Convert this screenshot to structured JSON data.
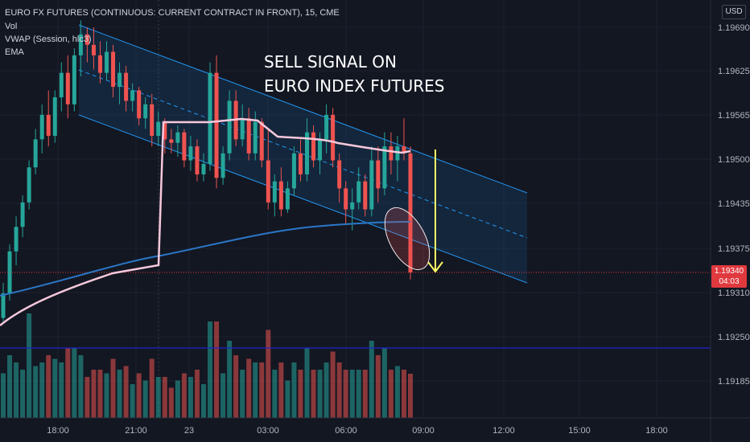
{
  "header": {
    "title": "EURO FX FUTURES (CONTINUOUS: CURRENT CONTRACT IN FRONT), 15, CME",
    "indicators": [
      "Vol",
      "VWAP (Session, hlc3)",
      "EMA"
    ]
  },
  "currency_label": "USD",
  "last_price": "1.19340",
  "countdown": "04:03",
  "annotation": [
    "SELL SIGNAL ON",
    "EURO INDEX FUTURES"
  ],
  "colors": {
    "bull": "#26a69a",
    "bear": "#ef5350",
    "vwap": "#f8c8dc",
    "ema": "#2962ff",
    "channel": "#2196f3",
    "arrow": "#ffff66",
    "hline": "#1e22c8",
    "badge": "#e0393e"
  },
  "chart_data": {
    "type": "candlestick",
    "title": "EURO FX FUTURES (CONTINUOUS: CURRENT CONTRACT IN FRONT), 15, CME",
    "y_ticks": [
      "1.19690",
      "1.19625",
      "1.19565",
      "1.19500",
      "1.19435",
      "1.19375",
      "1.19310",
      "1.19250",
      "1.19185"
    ],
    "x_ticks": [
      "18:00",
      "21:00",
      "23",
      "03:00",
      "06:00",
      "09:00",
      "12:00",
      "15:00",
      "18:00"
    ],
    "ylim": [
      1.1914,
      1.1971
    ],
    "horizontal_lines": [
      1.1934,
      1.1924
    ],
    "candles_approx_ohlc": [
      [
        1.19275,
        1.19325,
        1.1927,
        1.1931
      ],
      [
        1.1931,
        1.1938,
        1.193,
        1.1937
      ],
      [
        1.1937,
        1.1942,
        1.1935,
        1.19405
      ],
      [
        1.19405,
        1.1945,
        1.1939,
        1.1944
      ],
      [
        1.1944,
        1.195,
        1.1943,
        1.1949
      ],
      [
        1.1949,
        1.19545,
        1.1948,
        1.1953
      ],
      [
        1.1953,
        1.1958,
        1.1951,
        1.19565
      ],
      [
        1.19565,
        1.196,
        1.1952,
        1.19535
      ],
      [
        1.19535,
        1.196,
        1.19525,
        1.1959
      ],
      [
        1.1959,
        1.1964,
        1.1957,
        1.19625
      ],
      [
        1.19625,
        1.1965,
        1.1956,
        1.1958
      ],
      [
        1.1958,
        1.1966,
        1.1957,
        1.1965
      ],
      [
        1.1965,
        1.197,
        1.1962,
        1.1968
      ],
      [
        1.1968,
        1.1969,
        1.1964,
        1.19665
      ],
      [
        1.19665,
        1.1969,
        1.1963,
        1.1965
      ],
      [
        1.1965,
        1.1967,
        1.1961,
        1.19625
      ],
      [
        1.19625,
        1.1967,
        1.19615,
        1.19655
      ],
      [
        1.19655,
        1.19665,
        1.1959,
        1.19605
      ],
      [
        1.19605,
        1.1964,
        1.1958,
        1.19625
      ],
      [
        1.19625,
        1.19635,
        1.1957,
        1.19585
      ],
      [
        1.19585,
        1.1961,
        1.1957,
        1.196
      ],
      [
        1.196,
        1.19605,
        1.1955,
        1.1956
      ],
      [
        1.1956,
        1.1959,
        1.19545,
        1.1958
      ],
      [
        1.1958,
        1.19595,
        1.1952,
        1.19535
      ],
      [
        1.19535,
        1.1957,
        1.1952,
        1.19555
      ],
      [
        1.19555,
        1.1956,
        1.1951,
        1.1953
      ],
      [
        1.1953,
        1.19545,
        1.1951,
        1.19525
      ],
      [
        1.19525,
        1.1955,
        1.19505,
        1.1954
      ],
      [
        1.1954,
        1.19545,
        1.1949,
        1.195
      ],
      [
        1.195,
        1.19535,
        1.19485,
        1.1952
      ],
      [
        1.1952,
        1.1953,
        1.1947,
        1.1948
      ],
      [
        1.1948,
        1.1951,
        1.1947,
        1.19495
      ],
      [
        1.19495,
        1.1964,
        1.19485,
        1.19625
      ],
      [
        1.19625,
        1.1965,
        1.1946,
        1.19475
      ],
      [
        1.19475,
        1.1952,
        1.19465,
        1.1951
      ],
      [
        1.1951,
        1.196,
        1.195,
        1.19585
      ],
      [
        1.19585,
        1.196,
        1.1952,
        1.1953
      ],
      [
        1.1953,
        1.1958,
        1.1952,
        1.1956
      ],
      [
        1.1956,
        1.19575,
        1.195,
        1.1951
      ],
      [
        1.1951,
        1.1957,
        1.195,
        1.19555
      ],
      [
        1.19555,
        1.1956,
        1.1949,
        1.195
      ],
      [
        1.195,
        1.19545,
        1.1943,
        1.1944
      ],
      [
        1.1944,
        1.1948,
        1.1942,
        1.1947
      ],
      [
        1.1947,
        1.1949,
        1.1942,
        1.1943
      ],
      [
        1.1943,
        1.1947,
        1.19425,
        1.1946
      ],
      [
        1.1946,
        1.1952,
        1.1945,
        1.1951
      ],
      [
        1.1951,
        1.1953,
        1.1947,
        1.1948
      ],
      [
        1.1948,
        1.1956,
        1.1947,
        1.1954
      ],
      [
        1.1954,
        1.1955,
        1.1949,
        1.195
      ],
      [
        1.195,
        1.1954,
        1.1948,
        1.1953
      ],
      [
        1.1953,
        1.1958,
        1.1951,
        1.19565
      ],
      [
        1.19565,
        1.19575,
        1.1949,
        1.195
      ],
      [
        1.195,
        1.1951,
        1.1944,
        1.1946
      ],
      [
        1.1946,
        1.1947,
        1.1941,
        1.1943
      ],
      [
        1.1943,
        1.1946,
        1.194,
        1.1944
      ],
      [
        1.1944,
        1.1949,
        1.1943,
        1.1947
      ],
      [
        1.1947,
        1.1948,
        1.1942,
        1.1943
      ],
      [
        1.1943,
        1.1952,
        1.1942,
        1.195
      ],
      [
        1.195,
        1.1952,
        1.1944,
        1.1946
      ],
      [
        1.1946,
        1.1954,
        1.1945,
        1.1952
      ],
      [
        1.1952,
        1.1954,
        1.1948,
        1.195
      ],
      [
        1.195,
        1.19535,
        1.1947,
        1.1952
      ],
      [
        1.1952,
        1.1956,
        1.195,
        1.1951
      ],
      [
        1.1951,
        1.1952,
        1.1933,
        1.1934
      ]
    ]
  }
}
